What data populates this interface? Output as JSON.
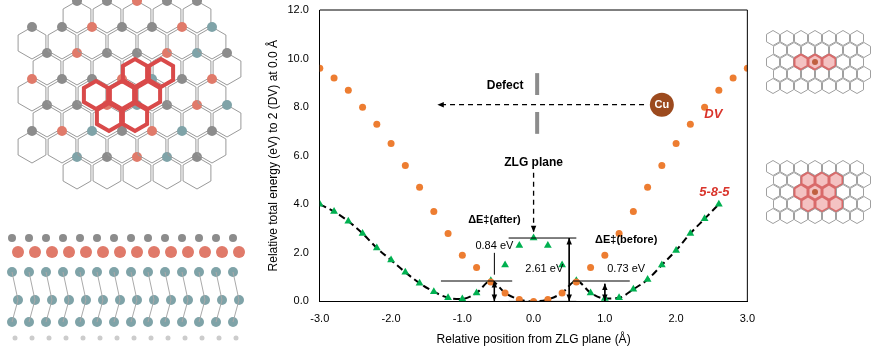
{
  "chart_data": {
    "type": "line",
    "x_label": "Relative position from ZLG plane (Å)",
    "y_label": "Relative total energy (eV) to 2 (DV) at 0.0 Å",
    "xlim": [
      -3,
      3
    ],
    "xticks": [
      {
        "value": -3,
        "label": "-3.0"
      },
      {
        "value": -2,
        "label": "-2.0"
      },
      {
        "value": -1,
        "label": "-1.0"
      },
      {
        "value": 0,
        "label": "0.0"
      },
      {
        "value": 1,
        "label": "1.0"
      },
      {
        "value": 2,
        "label": "2.0"
      },
      {
        "value": 3,
        "label": "3.0"
      }
    ],
    "ylim": [
      0,
      12
    ],
    "yticks": [
      {
        "value": 0,
        "label": "0.0"
      },
      {
        "value": 2,
        "label": "2.0"
      },
      {
        "value": 4,
        "label": "4.0"
      },
      {
        "value": 6,
        "label": "6.0"
      },
      {
        "value": 8,
        "label": "8.0"
      },
      {
        "value": 10,
        "label": "10.0"
      },
      {
        "value": 12,
        "label": "12.0"
      }
    ],
    "grid": false,
    "series": [
      {
        "name": "DV",
        "color": "#ed7d31",
        "marker": "circle",
        "line_style": "none",
        "x": [
          -3,
          -2.8,
          -2.6,
          -2.4,
          -2.2,
          -2,
          -1.8,
          -1.6,
          -1.4,
          -1.2,
          -1,
          -0.8,
          -0.6,
          -0.4,
          -0.2,
          0,
          0.2,
          0.4,
          0.6,
          0.8,
          1,
          1.2,
          1.4,
          1.6,
          1.8,
          2,
          2.2,
          2.4,
          2.6,
          2.8,
          3
        ],
        "values": [
          9.6,
          9.2,
          8.7,
          8.0,
          7.3,
          6.5,
          5.6,
          4.7,
          3.7,
          2.8,
          1.9,
          1.4,
          0.8,
          0.35,
          0.08,
          0,
          0.08,
          0.35,
          0.8,
          1.4,
          1.9,
          2.8,
          3.7,
          4.7,
          5.6,
          6.5,
          7.3,
          8.0,
          8.7,
          9.2,
          9.6
        ]
      },
      {
        "name": "5-8-5",
        "color": "#00b050",
        "marker": "triangle",
        "line_style": "none",
        "x": [
          -3,
          -2.8,
          -2.6,
          -2.4,
          -2.2,
          -2,
          -1.8,
          -1.6,
          -1.4,
          -1.2,
          -1,
          -0.8,
          -0.6,
          -0.4,
          -0.2,
          0,
          0.2,
          0.4,
          0.6,
          0.8,
          1,
          1.2,
          1.4,
          1.6,
          1.8,
          2,
          2.2,
          2.4,
          2.6
        ],
        "values": [
          4.0,
          3.7,
          3.3,
          2.8,
          2.2,
          1.7,
          1.2,
          0.75,
          0.4,
          0.15,
          0.1,
          0.35,
          0.85,
          1.5,
          2.3,
          2.61,
          2.3,
          1.5,
          0.85,
          0.35,
          0.12,
          0.15,
          0.5,
          0.9,
          1.5,
          2.1,
          2.8,
          3.4,
          4.0
        ]
      },
      {
        "color": "#000000",
        "marker": "none",
        "line_style": "dashed",
        "x": [
          -3,
          -2.8,
          -2.6,
          -2.4,
          -2.2,
          -2,
          -1.8,
          -1.6,
          -1.4,
          -1.2,
          -1,
          -0.8,
          -0.6,
          -0.4,
          -0.2,
          0,
          0.2,
          0.4,
          0.6,
          0.8,
          1,
          1.2,
          1.4,
          1.6,
          1.8,
          2,
          2.2,
          2.4,
          2.6
        ],
        "values": [
          4.0,
          3.7,
          3.3,
          2.8,
          2.2,
          1.7,
          1.2,
          0.75,
          0.4,
          0.15,
          0.1,
          0.35,
          0.85,
          0.35,
          0.08,
          0,
          0.08,
          0.35,
          0.85,
          0.35,
          0.12,
          0.15,
          0.5,
          0.9,
          1.5,
          2.1,
          2.8,
          3.4,
          4.0
        ]
      }
    ],
    "annotations": [
      "Defect",
      "ZLG plane",
      "Cu"
    ],
    "energy_barriers": [
      {
        "label": "ΔE‡(after)",
        "text": "0.84 eV",
        "value": 0.84
      },
      {
        "text": "2.61 eV",
        "value": 2.61
      },
      {
        "label": "ΔE‡(before)",
        "text": "0.73 eV",
        "value": 0.73
      }
    ]
  }
}
